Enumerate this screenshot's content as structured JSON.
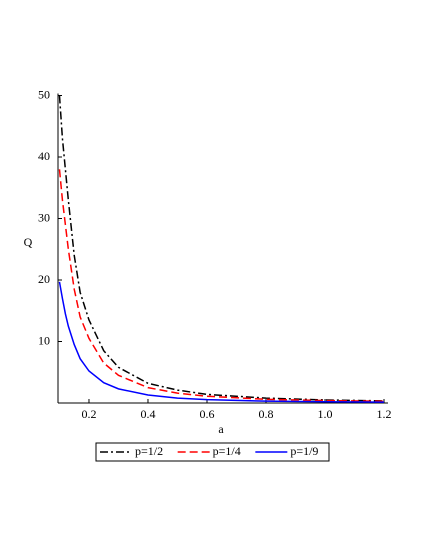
{
  "chart_data": {
    "type": "line",
    "x_label": "a",
    "y_label": "Q",
    "x": [
      0.1,
      0.11,
      0.12,
      0.13,
      0.15,
      0.17,
      0.2,
      0.25,
      0.3,
      0.4,
      0.5,
      0.6,
      0.8,
      1.0,
      1.2
    ],
    "series": [
      {
        "name": "p=1/2",
        "color": "#000000",
        "dash": "dashdot",
        "values": [
          50,
          43,
          38,
          33,
          24,
          18,
          13.5,
          8.5,
          5.8,
          3.2,
          2.1,
          1.4,
          0.8,
          0.5,
          0.35
        ]
      },
      {
        "name": "p=1/4",
        "color": "#ff0000",
        "dash": "dash",
        "values": [
          38,
          33,
          29,
          25,
          18.5,
          14,
          10.5,
          6.5,
          4.5,
          2.5,
          1.6,
          1.1,
          0.6,
          0.4,
          0.28
        ]
      },
      {
        "name": "p=1/9",
        "color": "#0000ff",
        "dash": "solid",
        "values": [
          19.7,
          17,
          14.5,
          12.5,
          9.5,
          7.2,
          5.2,
          3.3,
          2.3,
          1.3,
          0.8,
          0.55,
          0.3,
          0.2,
          0.14
        ]
      }
    ],
    "xlim": [
      0.095,
      1.2
    ],
    "ylim": [
      0,
      50
    ],
    "xticks": [
      0.2,
      0.4,
      0.6,
      0.8,
      {
        "value": 1,
        "label": "1.0"
      },
      1.2
    ],
    "yticks": [
      10,
      20,
      30,
      40,
      50
    ],
    "legend": "bottom"
  }
}
